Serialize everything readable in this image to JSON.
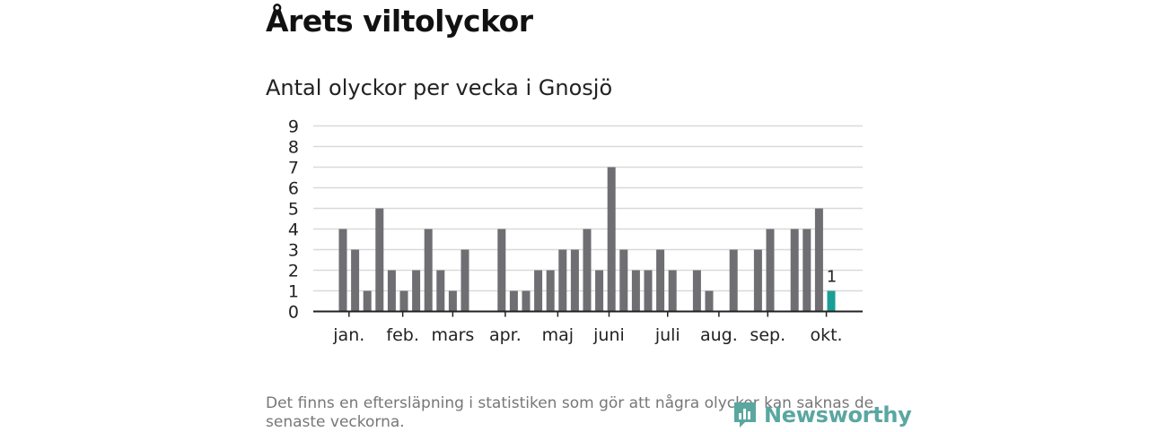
{
  "title": "Årets viltolyckor",
  "subtitle": "Antal olyckor per vecka i Gnosjö",
  "footnote": "Det finns en eftersläpning i statistiken som gör att några olyckor kan saknas de senaste veckorna.",
  "logo_text": "Newsworthy",
  "colors": {
    "bar": "#6e6e73",
    "highlight": "#1a9e96",
    "grid": "#d9d9d9",
    "axis": "#222222",
    "logo": "#5aa7a0"
  },
  "chart_data": {
    "type": "bar",
    "title": "Antal olyckor per vecka i Gnosjö",
    "xlabel": "",
    "ylabel": "",
    "ylim": [
      0,
      9
    ],
    "yticks": [
      0,
      1,
      2,
      3,
      4,
      5,
      6,
      7,
      8,
      9
    ],
    "weeks": [
      1,
      2,
      3,
      4,
      5,
      6,
      7,
      8,
      9,
      10,
      11,
      12,
      13,
      14,
      15,
      16,
      17,
      18,
      19,
      20,
      21,
      22,
      23,
      24,
      25,
      26,
      27,
      28,
      29,
      30,
      31,
      32,
      33,
      34,
      35,
      36,
      37,
      38,
      39,
      40,
      41,
      42,
      43,
      44,
      45
    ],
    "values": [
      4,
      3,
      1,
      5,
      2,
      1,
      2,
      4,
      2,
      1,
      3,
      0,
      0,
      4,
      1,
      1,
      2,
      2,
      3,
      3,
      4,
      2,
      7,
      3,
      2,
      2,
      3,
      2,
      0,
      2,
      1,
      0,
      3,
      0,
      3,
      4,
      0,
      4,
      4,
      5,
      1,
      null,
      null,
      null,
      null
    ],
    "highlight_week": 41,
    "highlight_label": "1",
    "month_labels": [
      {
        "label": "jan.",
        "week": 1.5
      },
      {
        "label": "feb.",
        "week": 5.9
      },
      {
        "label": "mars",
        "week": 10.0
      },
      {
        "label": "apr.",
        "week": 14.3
      },
      {
        "label": "maj",
        "week": 18.6
      },
      {
        "label": "juni",
        "week": 22.8
      },
      {
        "label": "juli",
        "week": 27.6
      },
      {
        "label": "aug.",
        "week": 31.8
      },
      {
        "label": "sep.",
        "week": 35.8
      },
      {
        "label": "okt.",
        "week": 40.6
      }
    ]
  }
}
